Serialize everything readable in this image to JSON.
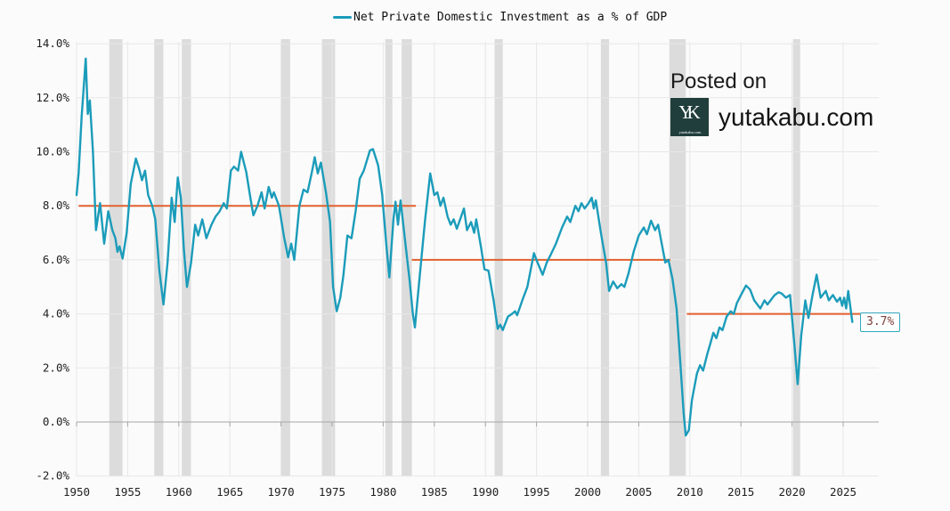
{
  "legend": {
    "label": "Net Private Domestic Investment as a % of GDP",
    "swatch_color": "#1b9cba"
  },
  "watermark": {
    "posted_on": "Posted on",
    "site": "yutakabu.com",
    "logo_monogram": "YK",
    "logo_caption": "yutakabu.com",
    "logo_bg": "#203e3c"
  },
  "annotation": {
    "label": "3.7%"
  },
  "colors": {
    "background": "#fbfbfb",
    "series": "#1b9cba",
    "trend": "#e2612c",
    "band": "#dcdcdc",
    "grid": "#e7e7e7",
    "axis": "#a6a6a6",
    "tick_text": "#1f1f1f",
    "annotation_border": "#35a8c0",
    "annotation_text": "#7e403b"
  },
  "chart_data": {
    "type": "line",
    "title": "Net Private Domestic Investment as a % of GDP",
    "xlabel": "",
    "ylabel": "",
    "xlim": [
      1950,
      2028.5
    ],
    "ylim": [
      -2,
      14
    ],
    "grid": true,
    "legend_position": "top-center",
    "x_ticks": [
      1950,
      1955,
      1960,
      1965,
      1970,
      1975,
      1980,
      1985,
      1990,
      1995,
      2000,
      2005,
      2010,
      2015,
      2020,
      2025
    ],
    "y_ticks": [
      "14.0%",
      "12.0%",
      "10.0%",
      "8.0%",
      "6.0%",
      "4.0%",
      "2.0%",
      "0.0%",
      "-2.0%"
    ],
    "y_tick_values": [
      14,
      12,
      10,
      8,
      6,
      4,
      2,
      0,
      -2
    ],
    "last_value_label": "3.7%",
    "trend_lines": [
      {
        "value": 8,
        "from": 1950.2,
        "to": 1983.2
      },
      {
        "value": 6,
        "from": 1982.8,
        "to": 2008.1
      },
      {
        "value": 4,
        "from": 2009.7,
        "to": 2029.2
      }
    ],
    "recessions": [
      [
        1953.2,
        1954.5
      ],
      [
        1957.6,
        1958.5
      ],
      [
        1960.3,
        1961.2
      ],
      [
        1970.0,
        1970.9
      ],
      [
        1974.0,
        1975.3
      ],
      [
        1980.2,
        1980.9
      ],
      [
        1981.8,
        1982.8
      ],
      [
        1990.9,
        1991.7
      ],
      [
        2001.3,
        2002.1
      ],
      [
        2008.0,
        2009.6
      ],
      [
        2020.1,
        2020.8
      ]
    ],
    "series": [
      {
        "name": "Net Private Domestic Investment as a % of GDP",
        "color": "#1b9cba",
        "points": [
          [
            1950.0,
            8.4
          ],
          [
            1950.2,
            9.2
          ],
          [
            1950.5,
            11.3
          ],
          [
            1950.9,
            13.45
          ],
          [
            1951.1,
            11.4
          ],
          [
            1951.3,
            11.9
          ],
          [
            1951.6,
            10.0
          ],
          [
            1951.9,
            7.1
          ],
          [
            1952.1,
            7.6
          ],
          [
            1952.3,
            8.1
          ],
          [
            1952.7,
            6.6
          ],
          [
            1953.1,
            7.8
          ],
          [
            1953.5,
            7.1
          ],
          [
            1953.8,
            6.8
          ],
          [
            1954.0,
            6.3
          ],
          [
            1954.2,
            6.5
          ],
          [
            1954.5,
            6.05
          ],
          [
            1954.9,
            7.0
          ],
          [
            1955.3,
            8.8
          ],
          [
            1955.8,
            9.75
          ],
          [
            1956.1,
            9.4
          ],
          [
            1956.4,
            8.95
          ],
          [
            1956.7,
            9.3
          ],
          [
            1957.0,
            8.4
          ],
          [
            1957.4,
            8.0
          ],
          [
            1957.7,
            7.5
          ],
          [
            1958.1,
            5.6
          ],
          [
            1958.5,
            4.35
          ],
          [
            1958.9,
            5.9
          ],
          [
            1959.3,
            8.3
          ],
          [
            1959.6,
            7.4
          ],
          [
            1959.9,
            9.05
          ],
          [
            1960.2,
            8.3
          ],
          [
            1960.5,
            6.4
          ],
          [
            1960.8,
            5.0
          ],
          [
            1961.2,
            5.9
          ],
          [
            1961.6,
            7.3
          ],
          [
            1961.9,
            6.9
          ],
          [
            1962.3,
            7.5
          ],
          [
            1962.7,
            6.8
          ],
          [
            1963.2,
            7.3
          ],
          [
            1963.6,
            7.6
          ],
          [
            1964.0,
            7.8
          ],
          [
            1964.4,
            8.1
          ],
          [
            1964.7,
            7.9
          ],
          [
            1965.1,
            9.3
          ],
          [
            1965.4,
            9.45
          ],
          [
            1965.8,
            9.3
          ],
          [
            1966.1,
            10.0
          ],
          [
            1966.6,
            9.25
          ],
          [
            1967.0,
            8.3
          ],
          [
            1967.3,
            7.65
          ],
          [
            1967.7,
            8.0
          ],
          [
            1968.1,
            8.5
          ],
          [
            1968.4,
            7.9
          ],
          [
            1968.8,
            8.7
          ],
          [
            1969.1,
            8.3
          ],
          [
            1969.3,
            8.5
          ],
          [
            1969.8,
            8.0
          ],
          [
            1970.3,
            6.85
          ],
          [
            1970.7,
            6.1
          ],
          [
            1971.0,
            6.6
          ],
          [
            1971.3,
            6.0
          ],
          [
            1971.8,
            8.0
          ],
          [
            1972.2,
            8.6
          ],
          [
            1972.6,
            8.5
          ],
          [
            1973.0,
            9.2
          ],
          [
            1973.3,
            9.8
          ],
          [
            1973.6,
            9.2
          ],
          [
            1973.9,
            9.6
          ],
          [
            1974.4,
            8.5
          ],
          [
            1974.8,
            7.4
          ],
          [
            1975.1,
            5.0
          ],
          [
            1975.45,
            4.1
          ],
          [
            1975.8,
            4.6
          ],
          [
            1976.1,
            5.4
          ],
          [
            1976.5,
            6.9
          ],
          [
            1976.9,
            6.8
          ],
          [
            1977.3,
            7.8
          ],
          [
            1977.7,
            9.0
          ],
          [
            1978.1,
            9.3
          ],
          [
            1978.7,
            10.05
          ],
          [
            1979.0,
            10.1
          ],
          [
            1979.5,
            9.5
          ],
          [
            1979.9,
            8.4
          ],
          [
            1980.3,
            6.6
          ],
          [
            1980.6,
            5.35
          ],
          [
            1981.0,
            7.5
          ],
          [
            1981.2,
            8.15
          ],
          [
            1981.45,
            7.3
          ],
          [
            1981.7,
            8.2
          ],
          [
            1982.2,
            6.5
          ],
          [
            1982.6,
            5.2
          ],
          [
            1982.9,
            4.0
          ],
          [
            1983.1,
            3.5
          ],
          [
            1983.6,
            5.5
          ],
          [
            1984.1,
            7.5
          ],
          [
            1984.6,
            9.2
          ],
          [
            1985.0,
            8.4
          ],
          [
            1985.3,
            8.5
          ],
          [
            1985.6,
            8.0
          ],
          [
            1985.9,
            8.3
          ],
          [
            1986.3,
            7.6
          ],
          [
            1986.6,
            7.3
          ],
          [
            1986.9,
            7.5
          ],
          [
            1987.2,
            7.15
          ],
          [
            1987.9,
            7.9
          ],
          [
            1988.2,
            7.1
          ],
          [
            1988.6,
            7.4
          ],
          [
            1988.9,
            7.0
          ],
          [
            1989.1,
            7.5
          ],
          [
            1989.6,
            6.4
          ],
          [
            1989.9,
            5.65
          ],
          [
            1990.3,
            5.6
          ],
          [
            1990.8,
            4.5
          ],
          [
            1991.2,
            3.45
          ],
          [
            1991.45,
            3.6
          ],
          [
            1991.7,
            3.4
          ],
          [
            1992.2,
            3.9
          ],
          [
            1992.6,
            4.0
          ],
          [
            1992.9,
            4.1
          ],
          [
            1993.1,
            3.95
          ],
          [
            1993.7,
            4.6
          ],
          [
            1994.1,
            5.0
          ],
          [
            1994.75,
            6.25
          ],
          [
            1995.1,
            5.9
          ],
          [
            1995.6,
            5.45
          ],
          [
            1996.0,
            5.9
          ],
          [
            1996.4,
            6.2
          ],
          [
            1996.9,
            6.6
          ],
          [
            1997.5,
            7.2
          ],
          [
            1998.0,
            7.6
          ],
          [
            1998.3,
            7.4
          ],
          [
            1998.8,
            8.0
          ],
          [
            1999.1,
            7.8
          ],
          [
            1999.4,
            8.1
          ],
          [
            1999.7,
            7.9
          ],
          [
            2000.1,
            8.1
          ],
          [
            2000.4,
            8.3
          ],
          [
            2000.6,
            7.9
          ],
          [
            2000.8,
            8.2
          ],
          [
            2001.3,
            7.0
          ],
          [
            2001.8,
            5.9
          ],
          [
            2002.1,
            4.85
          ],
          [
            2002.5,
            5.2
          ],
          [
            2002.9,
            4.95
          ],
          [
            2003.3,
            5.1
          ],
          [
            2003.6,
            5.0
          ],
          [
            2004.0,
            5.5
          ],
          [
            2004.5,
            6.3
          ],
          [
            2005.0,
            6.9
          ],
          [
            2005.5,
            7.2
          ],
          [
            2005.8,
            6.95
          ],
          [
            2006.2,
            7.45
          ],
          [
            2006.6,
            7.1
          ],
          [
            2006.9,
            7.3
          ],
          [
            2007.3,
            6.5
          ],
          [
            2007.6,
            5.9
          ],
          [
            2007.9,
            6.0
          ],
          [
            2008.3,
            5.3
          ],
          [
            2008.7,
            4.2
          ],
          [
            2009.1,
            2.0
          ],
          [
            2009.4,
            0.3
          ],
          [
            2009.6,
            -0.5
          ],
          [
            2009.9,
            -0.3
          ],
          [
            2010.2,
            0.8
          ],
          [
            2010.7,
            1.8
          ],
          [
            2011.0,
            2.1
          ],
          [
            2011.3,
            1.9
          ],
          [
            2011.7,
            2.5
          ],
          [
            2012.0,
            2.9
          ],
          [
            2012.3,
            3.3
          ],
          [
            2012.6,
            3.1
          ],
          [
            2012.9,
            3.5
          ],
          [
            2013.2,
            3.4
          ],
          [
            2013.6,
            3.9
          ],
          [
            2014.0,
            4.1
          ],
          [
            2014.3,
            4.0
          ],
          [
            2014.6,
            4.4
          ],
          [
            2015.0,
            4.7
          ],
          [
            2015.5,
            5.05
          ],
          [
            2015.9,
            4.9
          ],
          [
            2016.3,
            4.5
          ],
          [
            2016.9,
            4.2
          ],
          [
            2017.3,
            4.5
          ],
          [
            2017.6,
            4.35
          ],
          [
            2017.9,
            4.5
          ],
          [
            2018.3,
            4.7
          ],
          [
            2018.7,
            4.8
          ],
          [
            2019.0,
            4.75
          ],
          [
            2019.4,
            4.6
          ],
          [
            2019.8,
            4.7
          ],
          [
            2020.2,
            3.0
          ],
          [
            2020.55,
            1.4
          ],
          [
            2020.9,
            3.2
          ],
          [
            2021.3,
            4.5
          ],
          [
            2021.6,
            3.85
          ],
          [
            2022.0,
            4.7
          ],
          [
            2022.4,
            5.45
          ],
          [
            2022.8,
            4.6
          ],
          [
            2023.3,
            4.85
          ],
          [
            2023.6,
            4.5
          ],
          [
            2024.0,
            4.7
          ],
          [
            2024.4,
            4.45
          ],
          [
            2024.7,
            4.6
          ],
          [
            2024.9,
            4.3
          ],
          [
            2025.1,
            4.6
          ],
          [
            2025.3,
            4.2
          ],
          [
            2025.5,
            4.85
          ],
          [
            2025.9,
            3.7
          ]
        ]
      }
    ]
  }
}
